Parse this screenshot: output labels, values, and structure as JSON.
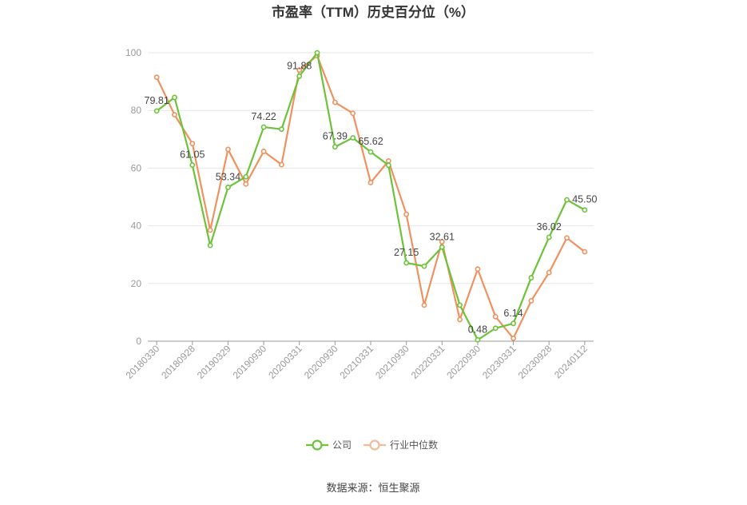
{
  "chart_data": {
    "type": "line",
    "title": "市盈率（TTM）历史百分位（%）",
    "source": "数据来源：恒生聚源",
    "ylim": [
      0,
      100
    ],
    "yticks": [
      0,
      20,
      40,
      60,
      80,
      100
    ],
    "grid": true,
    "legend_position": "bottom-center",
    "x_tick_labels": [
      "20180330",
      "20180928",
      "20190329",
      "20190930",
      "20200331",
      "20200930",
      "20210331",
      "20210930",
      "20220331",
      "20220930",
      "20230331",
      "20230928",
      "20240112"
    ],
    "x": [
      "20180330",
      "20180629",
      "20180928",
      "20181228",
      "20190329",
      "20190628",
      "20190930",
      "20191231",
      "20200331",
      "20200630",
      "20200930",
      "20201231",
      "20210331",
      "20210630",
      "20210930",
      "20211231",
      "20220331",
      "20220630",
      "20220930",
      "20221230",
      "20230331",
      "20230630",
      "20230928",
      "20231229",
      "20240112"
    ],
    "series": [
      {
        "name": "公司",
        "color": "#6cc33a",
        "values": [
          79.81,
          84.5,
          61.05,
          33.2,
          53.34,
          57.0,
          74.22,
          73.5,
          91.88,
          100.0,
          67.39,
          70.5,
          65.62,
          61.0,
          27.15,
          26.0,
          32.61,
          12.5,
          0.48,
          4.5,
          6.14,
          22.0,
          36.02,
          49.0,
          45.5
        ],
        "labels": {
          "0": "79.81",
          "2": "61.05",
          "4": "53.34",
          "6": "74.22",
          "8": "91.88",
          "10": "67.39",
          "12": "65.62",
          "14": "27.15",
          "16": "32.61",
          "18": "0.48",
          "20": "6.14",
          "22": "36.02",
          "24": "45.50"
        }
      },
      {
        "name": "行业中位数",
        "color": "#f0915f",
        "values": [
          91.5,
          78.5,
          68.5,
          38.5,
          66.5,
          54.5,
          65.8,
          61.2,
          94.0,
          99.0,
          82.8,
          79.0,
          55.0,
          62.5,
          44.0,
          12.5,
          34.5,
          7.5,
          25.0,
          8.5,
          1.0,
          14.0,
          23.8,
          35.8,
          31.0
        ]
      }
    ]
  }
}
